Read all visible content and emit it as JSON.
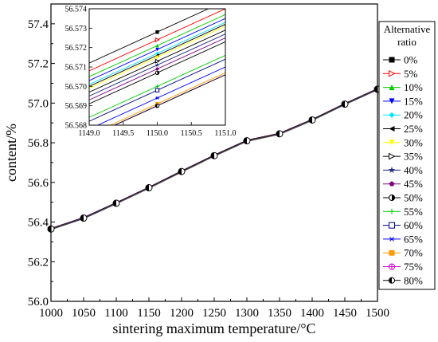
{
  "chart_data": {
    "type": "line",
    "xlabel": "sintering maximum temperature/°C",
    "ylabel": "content/%",
    "xlim": [
      1000,
      1500
    ],
    "ylim": [
      56.0,
      57.5
    ],
    "x_ticks": [
      "1000",
      "1050",
      "1100",
      "1150",
      "1200",
      "1250",
      "1300",
      "1350",
      "1400",
      "1450",
      "1500"
    ],
    "y_ticks": [
      "56.0",
      "56.2",
      "56.4",
      "56.6",
      "56.8",
      "57.0",
      "57.2",
      "57.4"
    ],
    "x": [
      1000,
      1050,
      1100,
      1150,
      1200,
      1250,
      1300,
      1350,
      1400,
      1450,
      1500
    ],
    "y_approx": [
      56.365,
      56.42,
      56.495,
      56.573,
      56.655,
      56.735,
      56.81,
      56.845,
      56.915,
      56.995,
      57.07
    ],
    "legend": {
      "title": "Alternative ratio",
      "position": "right",
      "entries": [
        {
          "label": "0%",
          "color": "#000000",
          "marker": "square-filled"
        },
        {
          "label": "5%",
          "color": "#ff0000",
          "marker": "triangle-right-open"
        },
        {
          "label": "10%",
          "color": "#00cc00",
          "marker": "triangle-up-filled"
        },
        {
          "label": "15%",
          "color": "#0000ff",
          "marker": "triangle-down-filled"
        },
        {
          "label": "20%",
          "color": "#00e5ff",
          "marker": "diamond-filled"
        },
        {
          "label": "25%",
          "color": "#000000",
          "marker": "triangle-left-filled"
        },
        {
          "label": "30%",
          "color": "#ffff00",
          "marker": "triangle-down-filled"
        },
        {
          "label": "35%",
          "color": "#000000",
          "marker": "triangle-right-open"
        },
        {
          "label": "40%",
          "color": "#1a237e",
          "marker": "star-filled"
        },
        {
          "label": "45%",
          "color": "#800080",
          "marker": "pentagon-filled"
        },
        {
          "label": "50%",
          "color": "#000000",
          "marker": "half-circle"
        },
        {
          "label": "55%",
          "color": "#00cc00",
          "marker": "plus"
        },
        {
          "label": "60%",
          "color": "#000080",
          "marker": "square-open"
        },
        {
          "label": "65%",
          "color": "#0000ff",
          "marker": "asterisk"
        },
        {
          "label": "70%",
          "color": "#ff9900",
          "marker": "square-filled"
        },
        {
          "label": "75%",
          "color": "#cc00cc",
          "marker": "circle-open-cross"
        },
        {
          "label": "80%",
          "color": "#000000",
          "marker": "half-circle-left"
        }
      ]
    },
    "inset": {
      "xlim": [
        1149.0,
        1151.0
      ],
      "ylim": [
        56.568,
        56.574
      ],
      "x_ticks": [
        "1149.0",
        "1149.5",
        "1150.0",
        "1150.5",
        "1151.0"
      ],
      "y_ticks": [
        "56.568",
        "56.569",
        "56.570",
        "56.571",
        "56.572",
        "56.573",
        "56.574"
      ],
      "x_point": 1150.0,
      "point_values": [
        56.5728,
        56.5724,
        56.5721,
        56.5719,
        56.5717,
        56.5716,
        56.5715,
        56.5713,
        56.5711,
        56.5709,
        56.5707,
        56.57,
        56.5698,
        56.5694,
        56.5691,
        56.569,
        56.569
      ],
      "slope_per_unit_x": 0.0016
    }
  }
}
